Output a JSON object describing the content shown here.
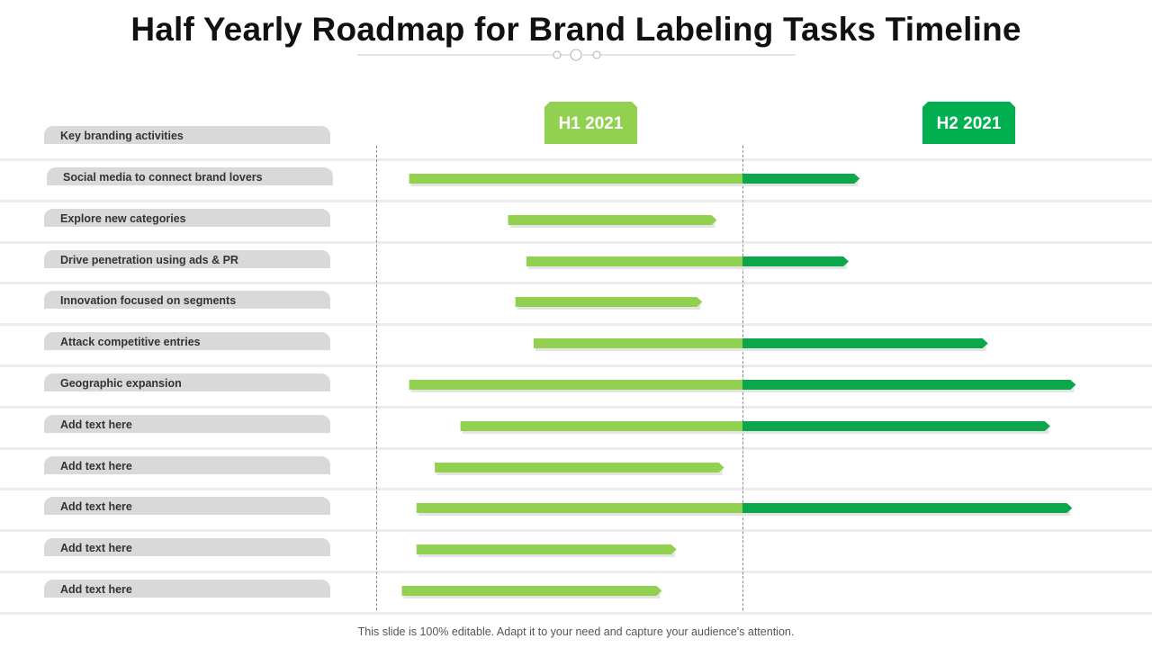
{
  "title": "Half Yearly Roadmap for Brand Labeling Tasks Timeline",
  "periods": [
    {
      "label": "H1 2021",
      "color": "#92d050"
    },
    {
      "label": "H2 2021",
      "color": "#00b050"
    }
  ],
  "colors": {
    "h1_bar": "#92d050",
    "h2_bar": "#0aa84a",
    "pill": "#d9d9d9",
    "divider": "#8c8c8c"
  },
  "activities_header": "Key branding activities",
  "chart_data": {
    "type": "bar",
    "x_unit": "half-year (0 = start of H1 2021, 1 = start of H2 2021, 2 = end of H2 2021)",
    "tasks": [
      {
        "label": "Social media to connect brand lovers",
        "start": 0.09,
        "end": 1.32
      },
      {
        "label": "Explore new categories",
        "start": 0.36,
        "end": 0.93
      },
      {
        "label": "Drive penetration using ads & PR",
        "start": 0.41,
        "end": 1.29
      },
      {
        "label": "Innovation focused on segments",
        "start": 0.38,
        "end": 0.89
      },
      {
        "label": "Attack competitive entries",
        "start": 0.43,
        "end": 1.67
      },
      {
        "label": "Geographic expansion",
        "start": 0.09,
        "end": 1.91
      },
      {
        "label": "Add text here",
        "start": 0.23,
        "end": 1.84
      },
      {
        "label": "Add text here",
        "start": 0.16,
        "end": 0.95
      },
      {
        "label": "Add text here",
        "start": 0.11,
        "end": 1.9
      },
      {
        "label": "Add text here",
        "start": 0.11,
        "end": 0.82
      },
      {
        "label": "Add text here",
        "start": 0.07,
        "end": 0.78
      }
    ]
  },
  "footer": "This slide is 100% editable. Adapt it to your need and capture your audience's attention."
}
